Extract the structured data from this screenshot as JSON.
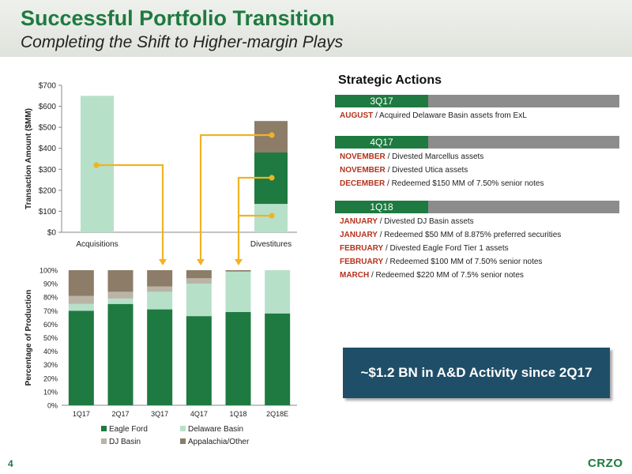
{
  "header": {
    "title": "Successful Portfolio Transition",
    "subtitle": "Completing the Shift to Higher-margin Plays"
  },
  "colors": {
    "brand_green": "#1e7a40",
    "eagle_ford": "#1e7a40",
    "delaware": "#b7e0c9",
    "dj": "#bab4a6",
    "appalachia": "#8c7c68",
    "arrow": "#f0b323",
    "callout_bg": "#1f4e68"
  },
  "chart_data": [
    {
      "type": "bar",
      "stacked": true,
      "categories": [
        "Acquisitions",
        "Divestitures"
      ],
      "ylabel": "Transaction Amount ($MM)",
      "ylim": [
        0,
        700
      ],
      "yticks": [
        "$0",
        "$100",
        "$200",
        "$300",
        "$400",
        "$500",
        "$600",
        "$700"
      ],
      "series": [
        {
          "key": "delaware",
          "values": [
            650,
            135
          ]
        },
        {
          "key": "eagle_ford",
          "values": [
            0,
            245
          ]
        },
        {
          "key": "appalachia",
          "values": [
            0,
            150
          ]
        }
      ]
    },
    {
      "type": "bar",
      "stacked": true,
      "categories": [
        "1Q17",
        "2Q17",
        "3Q17",
        "4Q17",
        "1Q18",
        "2Q18E"
      ],
      "ylabel": "Percentage of Production",
      "ylim": [
        0,
        100
      ],
      "yticks": [
        "0%",
        "10%",
        "20%",
        "30%",
        "40%",
        "50%",
        "60%",
        "70%",
        "80%",
        "90%",
        "100%"
      ],
      "series": [
        {
          "name": "Eagle Ford",
          "key": "eagle_ford",
          "values": [
            70,
            75,
            71,
            66,
            69,
            68
          ]
        },
        {
          "name": "Delaware Basin",
          "key": "delaware",
          "values": [
            5,
            4,
            13,
            24,
            30,
            32
          ]
        },
        {
          "name": "DJ Basin",
          "key": "dj",
          "values": [
            6,
            5,
            4,
            4,
            0,
            0
          ]
        },
        {
          "name": "Appalachia/Other",
          "key": "appalachia",
          "values": [
            19,
            16,
            12,
            6,
            1,
            0
          ]
        }
      ],
      "legend": "bottom"
    }
  ],
  "strategic_actions": {
    "title": "Strategic Actions",
    "quarters": [
      {
        "label": "3Q17",
        "items": [
          {
            "month": "AUGUST",
            "text": " / Acquired Delaware Basin assets from ExL"
          }
        ]
      },
      {
        "label": "4Q17",
        "items": [
          {
            "month": "NOVEMBER",
            "text": " / Divested Marcellus assets"
          },
          {
            "month": "NOVEMBER",
            "text": " / Divested Utica assets"
          },
          {
            "month": "DECEMBER",
            "text": " / Redeemed $150 MM of 7.50% senior notes"
          }
        ]
      },
      {
        "label": "1Q18",
        "items": [
          {
            "month": "JANUARY",
            "text": " / Divested DJ Basin assets"
          },
          {
            "month": "JANUARY",
            "text": " / Redeemed $50 MM of 8.875% preferred securities"
          },
          {
            "month": "FEBRUARY",
            "text": " / Divested Eagle Ford Tier 1 assets"
          },
          {
            "month": "FEBRUARY",
            "text": " / Redeemed $100 MM of 7.50% senior notes"
          },
          {
            "month": "MARCH",
            "text": " / Redeemed $220 MM of 7.5% senior notes"
          }
        ]
      }
    ]
  },
  "callout": "~$1.2 BN in A&D Activity since 2Q17",
  "footer": {
    "page": "4",
    "logo": "CRZO"
  }
}
